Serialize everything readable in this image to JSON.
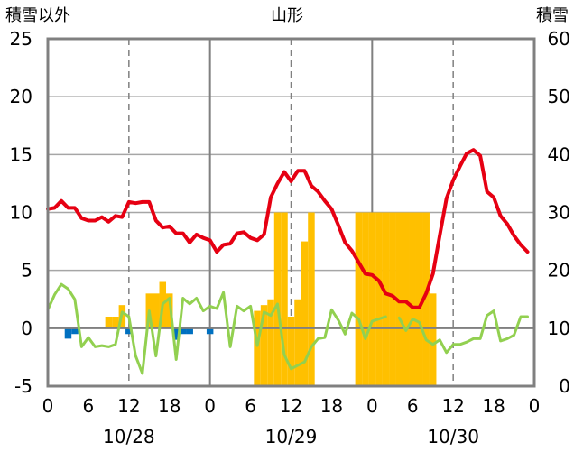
{
  "chart_data": {
    "type": "bar+line",
    "title": "山形",
    "left_axis": {
      "label": "積雪以外",
      "ylim": [
        -5,
        25
      ],
      "ticks": [
        -5,
        0,
        5,
        10,
        15,
        20,
        25
      ]
    },
    "right_axis": {
      "label": "積雪",
      "ylim": [
        0,
        60
      ],
      "ticks": [
        0,
        10,
        20,
        30,
        40,
        50,
        60
      ]
    },
    "x_axis": {
      "hour_ticks": [
        "0",
        "6",
        "12",
        "18",
        "0",
        "6",
        "12",
        "18",
        "0",
        "6",
        "12",
        "18",
        "0"
      ],
      "dates": [
        "10/28",
        "10/29",
        "10/30"
      ],
      "range_hours": [
        0,
        72
      ]
    },
    "grid": {
      "day_lines": "solid",
      "noon_lines": "dashed",
      "horizontal": "solid-gray"
    },
    "colors": {
      "temperature": "#e60012",
      "wind": "#92d050",
      "precip_pos": "#ffc000",
      "precip_neg": "#0070c0",
      "snow": "#ffc000",
      "frame": "#808080"
    },
    "series": [
      {
        "kind": "line",
        "axis": "left",
        "color": "#e60012",
        "x": [
          0,
          1,
          2,
          3,
          4,
          5,
          6,
          7,
          8,
          9,
          10,
          11,
          12,
          13,
          14,
          15,
          16,
          17,
          18,
          19,
          20,
          21,
          22,
          23,
          24,
          25,
          26,
          27,
          28,
          29,
          30,
          31,
          32,
          33,
          34,
          35,
          36,
          37,
          38,
          39,
          40,
          41,
          42,
          43,
          44,
          45,
          46,
          47,
          48,
          49,
          50,
          51,
          52,
          53,
          54,
          55,
          56,
          57,
          58,
          59,
          60,
          61,
          62,
          63,
          64,
          65,
          66,
          67,
          68,
          69,
          70,
          71
        ],
        "y": [
          10.3,
          10.4,
          11,
          10.4,
          10.4,
          9.5,
          9.3,
          9.3,
          9.6,
          9.2,
          9.7,
          9.6,
          10.9,
          10.8,
          10.9,
          10.9,
          9.3,
          8.7,
          8.8,
          8.2,
          8.2,
          7.4,
          8.1,
          7.8,
          7.6,
          6.6,
          7.2,
          7.3,
          8.2,
          8.3,
          7.8,
          7.6,
          8.1,
          11.3,
          12.5,
          13.5,
          12.7,
          13.6,
          13.6,
          12.3,
          11.8,
          11,
          10.3,
          8.9,
          7.4,
          6.7,
          5.7,
          4.7,
          4.6,
          4.1,
          3,
          2.8,
          2.3,
          2.3,
          1.8,
          1.8,
          3,
          4.7,
          8,
          11.2,
          12.8,
          14,
          15.1,
          15.4,
          14.9,
          11.8,
          11.3,
          9.7,
          9,
          8,
          7.2,
          6.6
        ]
      },
      {
        "kind": "line",
        "axis": "left",
        "color": "#92d050",
        "x": [
          0,
          1,
          2,
          3,
          4,
          5,
          6,
          7,
          8,
          9,
          10,
          11,
          12,
          13,
          14,
          15,
          16,
          17,
          18,
          19,
          20,
          21,
          22,
          23,
          24,
          25,
          26,
          27,
          28,
          29,
          30,
          31,
          32,
          33,
          34,
          35,
          36,
          37,
          38,
          39,
          40,
          41,
          42,
          43,
          44,
          45,
          46,
          47,
          48,
          49,
          50,
          51,
          52,
          53,
          54,
          55,
          56,
          57,
          58,
          59,
          60,
          61,
          62,
          63,
          64,
          65,
          66,
          67,
          68,
          69,
          70,
          71
        ],
        "y": [
          1.6,
          2.9,
          3.8,
          3.4,
          2.5,
          -1.6,
          -0.8,
          -1.6,
          -1.5,
          -1.6,
          -1.4,
          1.4,
          1.0,
          -2.4,
          -3.9,
          1.5,
          -2.4,
          2.1,
          2.6,
          -2.7,
          2.6,
          2.1,
          2.6,
          1.5,
          1.9,
          1.7,
          3.1,
          -1.6,
          1.9,
          1.5,
          1.9,
          -1.5,
          1.4,
          1.1,
          2.1,
          -2.3,
          -3.5,
          -3.2,
          -2.9,
          -1.6,
          -0.9,
          -0.8,
          1.6,
          0.7,
          -0.5,
          1.3,
          0.8,
          -0.9,
          0.6,
          0.8,
          1.0,
          null,
          0.9,
          -0.2,
          0.8,
          0.5,
          -1.0,
          -1.4,
          -1.0,
          -2.1,
          -1.4,
          -1.4,
          -1.2,
          -0.9,
          -0.9,
          1.1,
          1.5,
          -1.1,
          -0.9,
          -0.6,
          1.0,
          1.0
        ]
      },
      {
        "kind": "bar",
        "axis": "left",
        "name": "precip",
        "x": [
          3,
          4,
          9,
          10,
          11,
          12,
          15,
          16,
          17,
          18,
          19,
          20,
          21,
          24
        ],
        "values": [
          -0.9,
          -0.5,
          1.0,
          1.0,
          2.0,
          -0.5,
          3.0,
          3.0,
          4.0,
          3.0,
          -1.0,
          -0.5,
          -0.5,
          -0.5
        ]
      },
      {
        "kind": "bar",
        "axis": "right",
        "name": "snow",
        "x": [
          31,
          32,
          33,
          34,
          35,
          36,
          37,
          38,
          39,
          46,
          47,
          48,
          49,
          50,
          51,
          52,
          53,
          54,
          55,
          56,
          57
        ],
        "values": [
          13,
          14,
          15,
          30,
          30,
          12,
          15,
          25,
          30,
          30,
          30,
          30,
          30,
          30,
          30,
          30,
          30,
          30,
          30,
          30,
          16
        ]
      }
    ]
  }
}
